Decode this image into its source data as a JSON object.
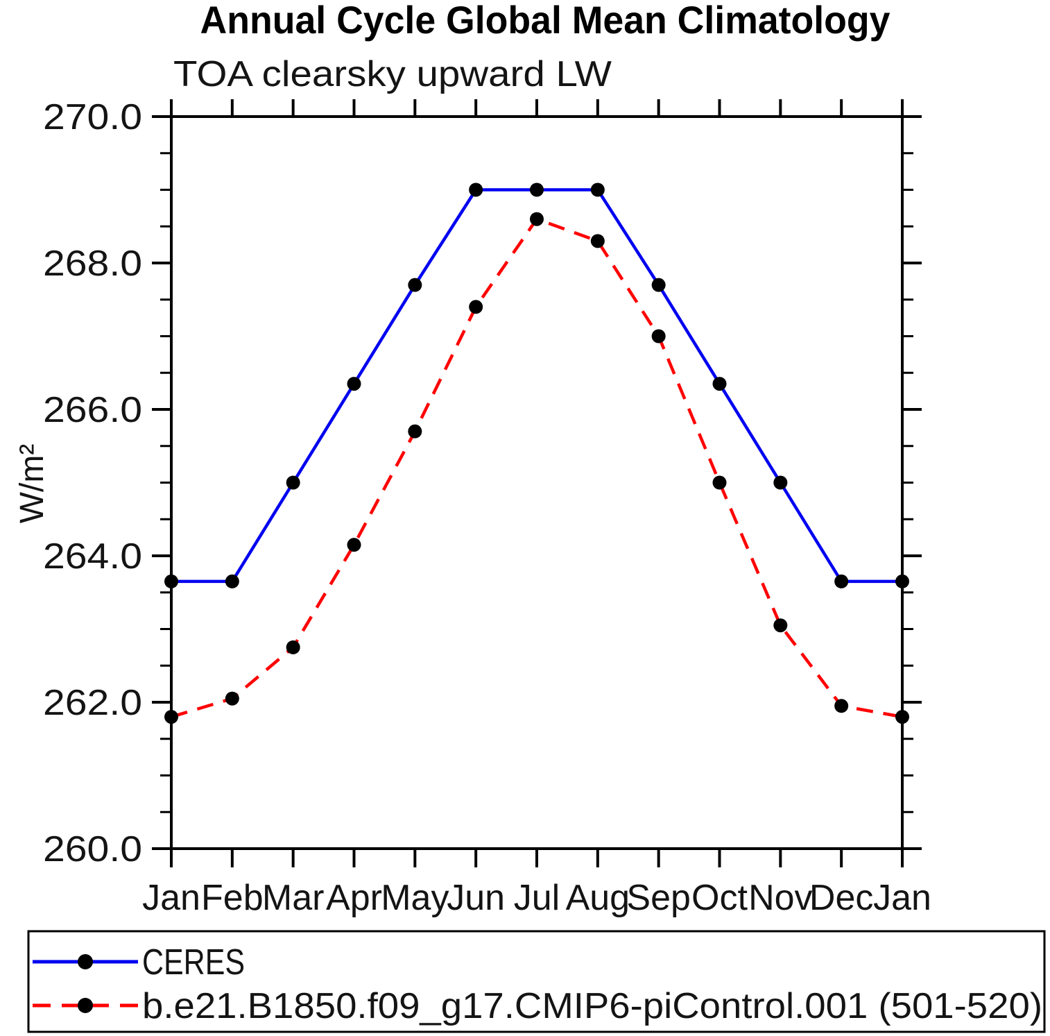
{
  "chart_data": {
    "type": "line",
    "title": "Annual Cycle Global Mean Climatology",
    "subtitle": "TOA clearsky upward LW",
    "ylabel": "W/m²",
    "xlabel": "",
    "categories": [
      "Jan",
      "Feb",
      "Mar",
      "Apr",
      "May",
      "Jun",
      "Jul",
      "Aug",
      "Sep",
      "Oct",
      "Nov",
      "Dec",
      "Jan"
    ],
    "ylim": [
      260.0,
      270.0
    ],
    "ytick_major_step": 2.0,
    "ytick_minor_step": 0.5,
    "ytick_label_format": "one_decimal",
    "grid": false,
    "legend_position": "bottom-box",
    "frame_color": "#000000",
    "background_color": "#ffffff",
    "marker_color": "#000000",
    "series": [
      {
        "name": "CERES",
        "color": "#0000f0",
        "line_style": "solid",
        "marker": "circle",
        "values": [
          263.65,
          263.65,
          265.0,
          266.35,
          267.7,
          269.0,
          269.0,
          269.0,
          267.7,
          266.35,
          265.0,
          263.65,
          263.65
        ]
      },
      {
        "name": "b.e21.B1850.f09_g17.CMIP6-piControl.001 (501-520)",
        "color": "#ff0000",
        "line_style": "dashed",
        "marker": "circle",
        "values": [
          261.8,
          262.05,
          262.75,
          264.15,
          265.7,
          267.4,
          268.6,
          268.3,
          267.0,
          265.0,
          263.05,
          261.95,
          261.8
        ]
      }
    ]
  }
}
